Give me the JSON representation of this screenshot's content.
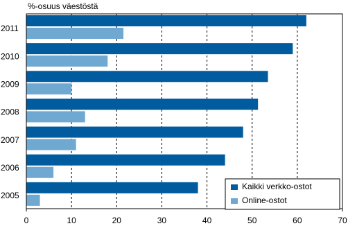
{
  "chart_data": {
    "type": "barh",
    "y_label": "%-osuus väestöstä",
    "categories": [
      "2011",
      "2010",
      "2009",
      "2008",
      "2007",
      "2006",
      "2005"
    ],
    "series": [
      {
        "name": "Kaikki verkko-ostot",
        "color": "#005c9e",
        "values": [
          62,
          59,
          53.5,
          51.3,
          48,
          44,
          38
        ]
      },
      {
        "name": "Online-ostot",
        "color": "#6fa8d0",
        "values": [
          21.5,
          18,
          10,
          13,
          11,
          6,
          3
        ]
      }
    ],
    "xlim": [
      0,
      70
    ],
    "xticks": [
      0,
      10,
      20,
      30,
      40,
      50,
      60,
      70
    ],
    "grid": true,
    "legend": "lower right"
  }
}
